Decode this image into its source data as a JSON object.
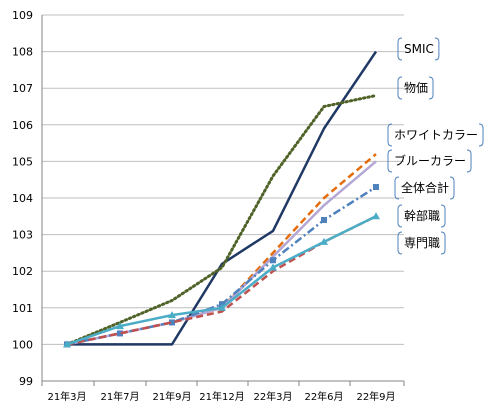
{
  "chart_data": {
    "type": "line",
    "title": "",
    "xlabel": "",
    "ylabel": "",
    "categories": [
      "21年3月",
      "21年7月",
      "21年9月",
      "21年12月",
      "22年3月",
      "22年6月",
      "22年9月"
    ],
    "ylim": [
      99,
      109
    ],
    "yticks": [
      99,
      100,
      101,
      102,
      103,
      104,
      105,
      106,
      107,
      108,
      109
    ],
    "grid": "horizontal",
    "legend": "callouts at right end of each series",
    "series": [
      {
        "name": "SMIC",
        "color": "#1f3864",
        "style": "solid",
        "marker": "none",
        "values": [
          100.0,
          100.0,
          100.0,
          102.2,
          103.1,
          105.9,
          108.0
        ]
      },
      {
        "name": "物価",
        "color": "#4f6228",
        "style": "dotted",
        "marker": "none",
        "values": [
          100.0,
          100.6,
          101.2,
          102.1,
          104.6,
          106.5,
          106.8
        ]
      },
      {
        "name": "ホワイトカラー",
        "color": "#e46c0a",
        "style": "dashed",
        "marker": "none",
        "values": [
          100.0,
          100.3,
          100.6,
          101.0,
          102.5,
          104.0,
          105.2
        ]
      },
      {
        "name": "ブルーカラー",
        "color": "#b4a7d6",
        "style": "solid",
        "marker": "none",
        "values": [
          100.0,
          100.3,
          100.6,
          101.0,
          102.4,
          103.8,
          105.0
        ]
      },
      {
        "name": "全体合計",
        "color": "#4f81bd",
        "style": "dashdot",
        "marker": "square",
        "values": [
          100.0,
          100.3,
          100.6,
          101.1,
          102.3,
          103.4,
          104.3
        ]
      },
      {
        "name": "幹部職",
        "color": "#c0504d",
        "style": "dashed",
        "marker": "none",
        "values": [
          100.0,
          100.3,
          100.6,
          100.9,
          102.0,
          102.8,
          103.5
        ]
      },
      {
        "name": "専門職",
        "color": "#4bacc6",
        "style": "solid",
        "marker": "triangle",
        "values": [
          100.0,
          100.5,
          100.8,
          101.0,
          102.1,
          102.8,
          103.5
        ]
      }
    ]
  }
}
